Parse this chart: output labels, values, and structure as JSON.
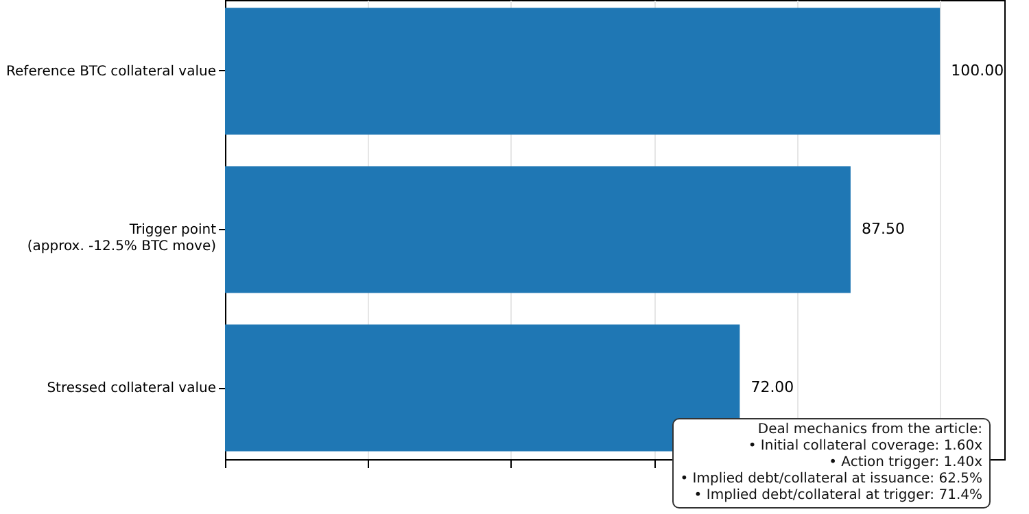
{
  "chart_data": {
    "type": "bar",
    "orientation": "horizontal",
    "categories": [
      "Reference BTC collateral value",
      "Trigger point\n(approx. -12.5% BTC move)",
      "Stressed collateral value"
    ],
    "values": [
      100,
      87.5,
      72
    ],
    "value_labels": [
      "100.00",
      "87.50",
      "72.00"
    ],
    "color": "#1f77b4",
    "xlim": [
      0,
      109
    ],
    "xticks": [
      {
        "value": 0,
        "label": null
      },
      {
        "value": 20,
        "label": null
      },
      {
        "value": 40,
        "label": null
      },
      {
        "value": 60,
        "label": null
      },
      {
        "value": 80,
        "label": null
      },
      {
        "value": 100,
        "label": null
      }
    ],
    "tick_labels": "y",
    "grid": "x",
    "annotations": [
      "Deal mechanics from the article:",
      "• Initial collateral coverage: 1.60x",
      "• Action trigger: 1.40x",
      "• Implied debt/collateral at issuance: 62.5%",
      "• Implied debt/collateral at trigger: 71.4%"
    ]
  }
}
